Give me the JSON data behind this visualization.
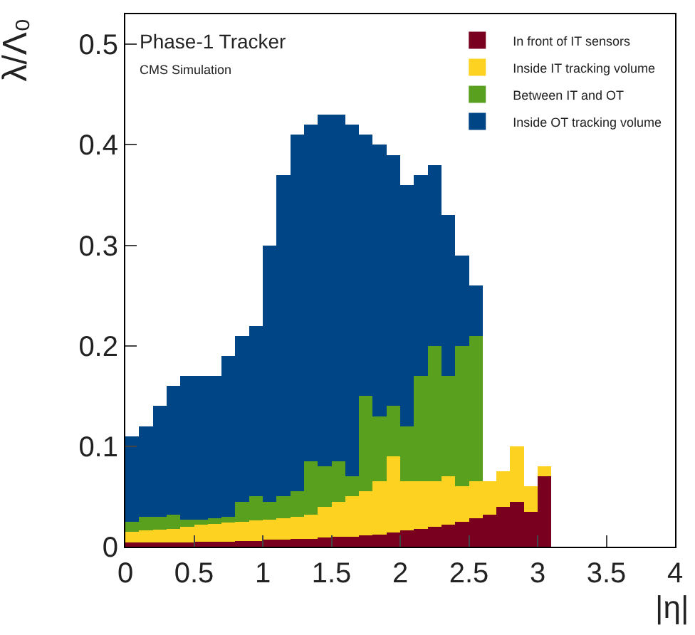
{
  "chart_data": {
    "type": "bar",
    "stacked": true,
    "xlabel": "|η|",
    "ylabel": "λ/Λ₀",
    "annotations": [
      "Phase-1 Tracker",
      "CMS Simulation"
    ],
    "x": [
      0.05,
      0.15,
      0.25,
      0.35,
      0.45,
      0.55,
      0.65,
      0.75,
      0.85,
      0.95,
      1.05,
      1.15,
      1.25,
      1.35,
      1.45,
      1.55,
      1.65,
      1.75,
      1.85,
      1.95,
      2.05,
      2.15,
      2.25,
      2.35,
      2.45,
      2.55,
      2.65,
      2.75,
      2.85,
      2.95,
      3.05
    ],
    "series": [
      {
        "name": "In front of IT sensors",
        "color": "#7a0020",
        "values": [
          0.004,
          0.004,
          0.004,
          0.004,
          0.004,
          0.005,
          0.005,
          0.005,
          0.006,
          0.006,
          0.007,
          0.007,
          0.008,
          0.008,
          0.009,
          0.01,
          0.01,
          0.011,
          0.012,
          0.014,
          0.016,
          0.018,
          0.02,
          0.022,
          0.025,
          0.028,
          0.032,
          0.04,
          0.045,
          0.035,
          0.07
        ]
      },
      {
        "name": "Inside IT tracking volume",
        "color": "#fdd220",
        "values": [
          0.011,
          0.012,
          0.013,
          0.014,
          0.016,
          0.017,
          0.018,
          0.019,
          0.019,
          0.02,
          0.02,
          0.021,
          0.022,
          0.024,
          0.031,
          0.035,
          0.04,
          0.044,
          0.053,
          0.076,
          0.049,
          0.047,
          0.045,
          0.048,
          0.035,
          0.037,
          0.033,
          0.035,
          0.055,
          0.025,
          0.01
        ]
      },
      {
        "name": "Between IT and OT",
        "color": "#58a01e",
        "values": [
          0.01,
          0.014,
          0.013,
          0.014,
          0.007,
          0.005,
          0.005,
          0.006,
          0.02,
          0.024,
          0.018,
          0.022,
          0.025,
          0.053,
          0.04,
          0.04,
          0.02,
          0.095,
          0.065,
          0.05,
          0.055,
          0.105,
          0.135,
          0.1,
          0.14,
          0.145,
          0,
          0,
          0,
          0,
          0
        ]
      },
      {
        "name": "Inside OT tracking volume",
        "color": "#004586",
        "values": [
          0.085,
          0.09,
          0.11,
          0.128,
          0.143,
          0.143,
          0.142,
          0.16,
          0.165,
          0.17,
          0.255,
          0.32,
          0.355,
          0.335,
          0.35,
          0.345,
          0.35,
          0.26,
          0.27,
          0.25,
          0.24,
          0.2,
          0.18,
          0.16,
          0.09,
          0.05,
          0,
          0,
          0,
          0,
          0
        ]
      }
    ],
    "xlim": [
      0,
      4
    ],
    "xticks": [
      0,
      0.5,
      1,
      1.5,
      2,
      2.5,
      3,
      3.5,
      4
    ],
    "ylim": [
      0,
      0.53
    ],
    "yticks": [
      0,
      0.1,
      0.2,
      0.3,
      0.4,
      0.5
    ],
    "legend": "top right"
  }
}
